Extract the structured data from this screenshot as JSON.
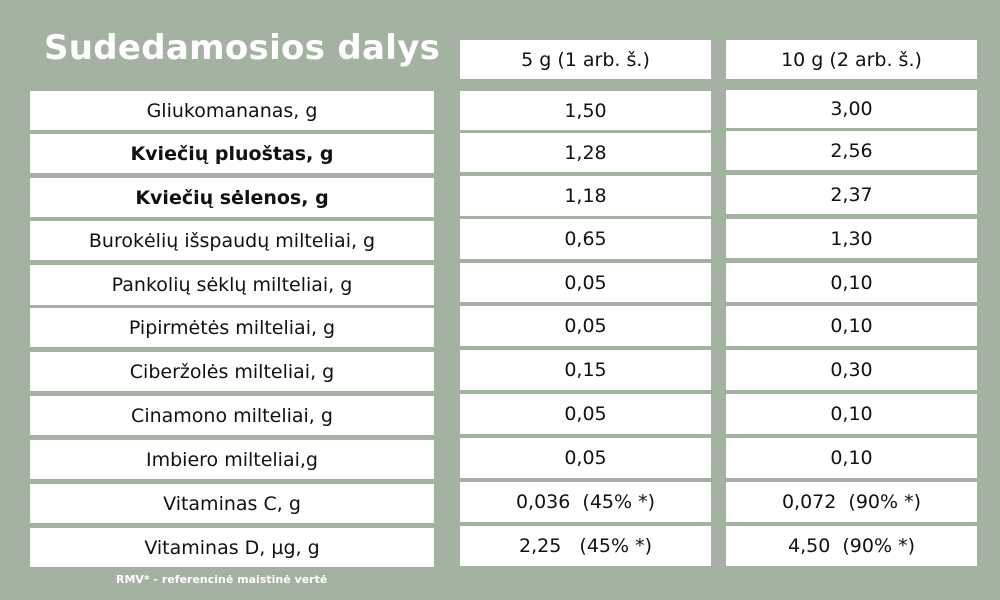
{
  "title": "Sudedamosios dalys",
  "columns": [
    "5 g (1 arb. š.)",
    "10 g (2 arb. š.)"
  ],
  "rows": [
    {
      "name": "Gliukomananas, g",
      "v1": "1,50",
      "v2": "3,00"
    },
    {
      "name": "Kviečių pluoštas, g",
      "v1": "1,28",
      "v2": "2,56"
    },
    {
      "name": "Kviečių sėlenos, g",
      "v1": "1,18",
      "v2": "2,37"
    },
    {
      "name": "Burokėlių išspaudų milteliai, g",
      "v1": "0,65",
      "v2": "1,30"
    },
    {
      "name": "Pankolių sėklų milteliai, g",
      "v1": "0,05",
      "v2": "0,10"
    },
    {
      "name": "Pipirmėtės milteliai, g",
      "v1": "0,05",
      "v2": "0,10"
    },
    {
      "name": "Ciberžolės milteliai, g",
      "v1": "0,15",
      "v2": "0,30"
    },
    {
      "name": "Cinamono milteliai, g",
      "v1": "0,05",
      "v2": "0,10"
    },
    {
      "name": "Imbiero milteliai,g",
      "v1": "0,05",
      "v2": "0,10"
    },
    {
      "name": "Vitaminas C, g",
      "v1": "0,036  (45% *)",
      "v2": "0,072  (90% *)"
    },
    {
      "name": "Vitaminas D, µg, g",
      "v1": "2,25   (45% *)",
      "v2": "4,50  (90% *)"
    }
  ],
  "footnote": "RMV* - referencinė maistinė vertė"
}
